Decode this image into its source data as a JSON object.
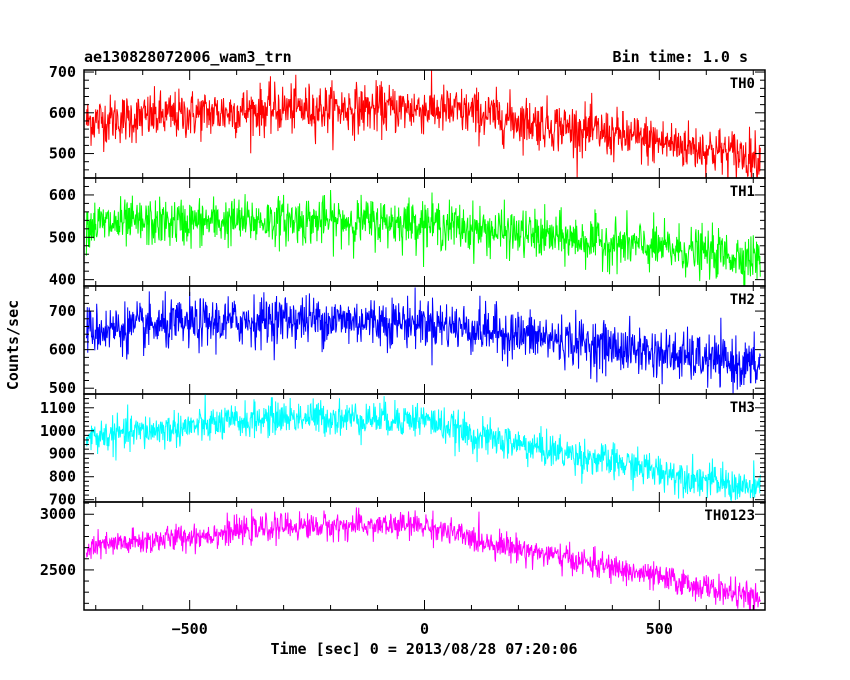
{
  "header": {
    "title": "ae130828072006_wam3_trn",
    "bin_time": "Bin time: 1.0 s"
  },
  "chart_data": {
    "type": "line",
    "title": "ae130828072006_wam3_trn",
    "xlabel": "Time [sec] 0 = 2013/08/28 07:20:06",
    "ylabel": "Counts/sec",
    "xlim": [
      -725,
      725
    ],
    "x_ticks": [
      -500,
      0,
      500
    ],
    "x_tick_labels": [
      "−500",
      "0",
      "500"
    ],
    "data_x_range": [
      -720,
      715
    ],
    "bin_time_s": 1.0,
    "panels": [
      {
        "name": "TH0",
        "color": "#ff0000",
        "ylim": [
          440,
          705
        ],
        "y_ticks": [
          500,
          600,
          700
        ],
        "trend": [
          [
            -720,
            580
          ],
          [
            -300,
            610
          ],
          [
            0,
            610
          ],
          [
            100,
            600
          ],
          [
            715,
            490
          ]
        ],
        "noise_sd": 30
      },
      {
        "name": "TH1",
        "color": "#00ff00",
        "ylim": [
          385,
          640
        ],
        "y_ticks": [
          400,
          500,
          600
        ],
        "trend": [
          [
            -720,
            530
          ],
          [
            -300,
            540
          ],
          [
            0,
            535
          ],
          [
            100,
            520
          ],
          [
            715,
            450
          ]
        ],
        "noise_sd": 28
      },
      {
        "name": "TH2",
        "color": "#0000ff",
        "ylim": [
          485,
          765
        ],
        "y_ticks": [
          500,
          600,
          700
        ],
        "trend": [
          [
            -720,
            650
          ],
          [
            -300,
            680
          ],
          [
            0,
            670
          ],
          [
            100,
            655
          ],
          [
            715,
            555
          ]
        ],
        "noise_sd": 32
      },
      {
        "name": "TH3",
        "color": "#00ffff",
        "ylim": [
          690,
          1160
        ],
        "y_ticks": [
          700,
          800,
          900,
          1000,
          1100
        ],
        "trend": [
          [
            -720,
            970
          ],
          [
            -300,
            1060
          ],
          [
            0,
            1050
          ],
          [
            100,
            980
          ],
          [
            715,
            740
          ]
        ],
        "noise_sd": 38
      },
      {
        "name": "TH0123",
        "color": "#ff00ff",
        "ylim": [
          2140,
          3110
        ],
        "y_ticks": [
          2500,
          3000
        ],
        "trend": [
          [
            -720,
            2700
          ],
          [
            -300,
            2890
          ],
          [
            0,
            2900
          ],
          [
            100,
            2780
          ],
          [
            715,
            2240
          ]
        ],
        "noise_sd": 60
      }
    ]
  }
}
